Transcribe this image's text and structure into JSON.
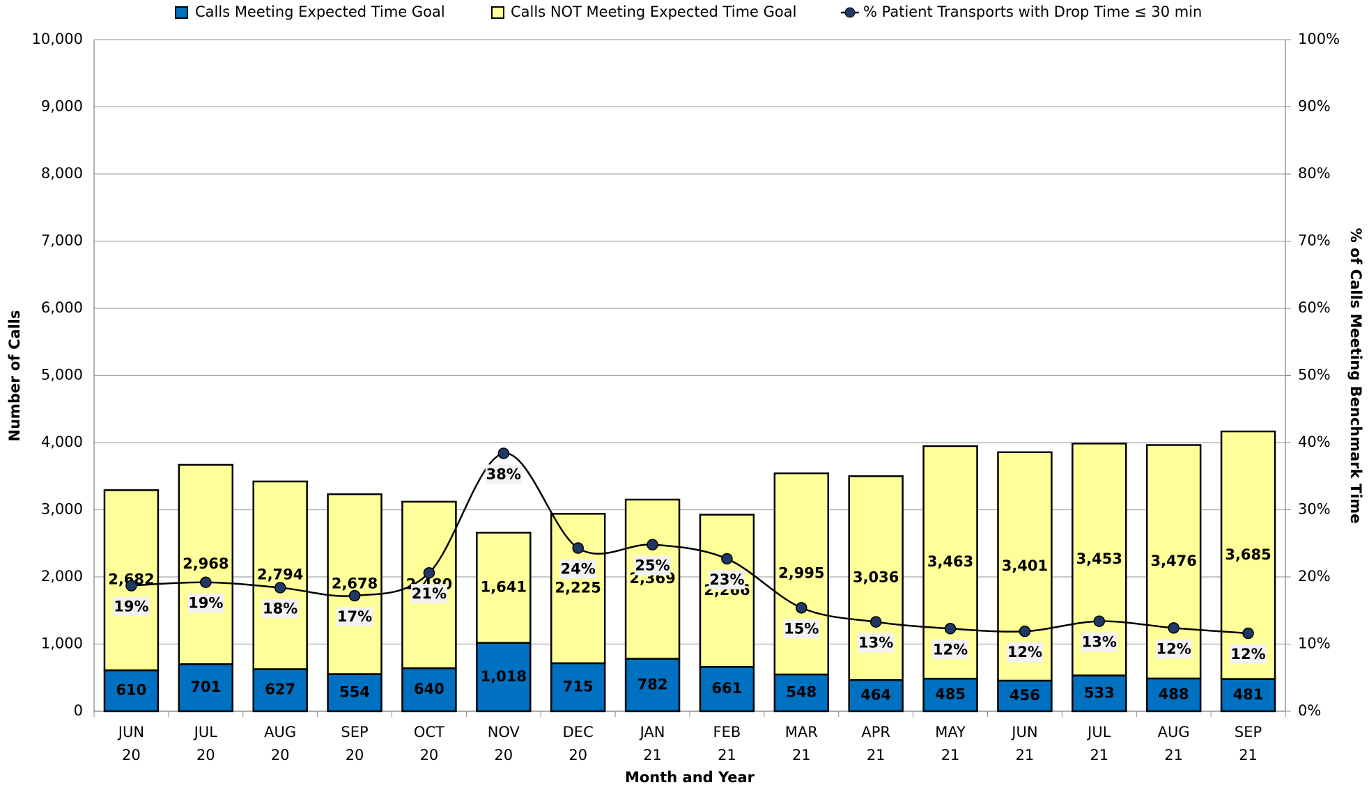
{
  "chart_data": {
    "type": "bar",
    "stacked": true,
    "x_label": "Month and Year",
    "y_label": "Number of Calls",
    "y2_label": "% of Calls Meeting Benchmark Time",
    "categories": [
      [
        "JUN",
        "20"
      ],
      [
        "JUL",
        "20"
      ],
      [
        "AUG",
        "20"
      ],
      [
        "SEP",
        "20"
      ],
      [
        "OCT",
        "20"
      ],
      [
        "NOV",
        "20"
      ],
      [
        "DEC",
        "20"
      ],
      [
        "JAN",
        "21"
      ],
      [
        "FEB",
        "21"
      ],
      [
        "MAR",
        "21"
      ],
      [
        "APR",
        "21"
      ],
      [
        "MAY",
        "21"
      ],
      [
        "JUN",
        "21"
      ],
      [
        "JUL",
        "21"
      ],
      [
        "AUG",
        "21"
      ],
      [
        "SEP",
        "21"
      ]
    ],
    "series": [
      {
        "name": "Calls Meeting Expected Time Goal",
        "type": "bar",
        "color": "#0070c0",
        "values": [
          610,
          701,
          627,
          554,
          640,
          1018,
          715,
          782,
          661,
          548,
          464,
          485,
          456,
          533,
          488,
          481
        ],
        "value_labels": [
          "610",
          "701",
          "627",
          "554",
          "640",
          "1,018",
          "715",
          "782",
          "661",
          "548",
          "464",
          "485",
          "456",
          "533",
          "488",
          "481"
        ]
      },
      {
        "name": "Calls NOT Meeting Expected Time Goal",
        "type": "bar",
        "color": "#ffff99",
        "values": [
          2682,
          2968,
          2794,
          2678,
          2480,
          1641,
          2225,
          2369,
          2266,
          2995,
          3036,
          3463,
          3401,
          3453,
          3476,
          3685
        ],
        "value_labels": [
          "2,682",
          "2,968",
          "2,794",
          "2,678",
          "2,480",
          "1,641",
          "2,225",
          "2,369",
          "2,266",
          "2,995",
          "3,036",
          "3,463",
          "3,401",
          "3,453",
          "3,476",
          "3,685"
        ]
      },
      {
        "name": "% Patient Transports with Drop Time ≤ 30 min",
        "type": "line",
        "axis": "y2",
        "color": "#000000",
        "marker_color": "#1f3864",
        "values": [
          18.7,
          19.2,
          18.4,
          17.2,
          20.6,
          38.4,
          24.3,
          24.8,
          22.7,
          15.4,
          13.3,
          12.3,
          11.9,
          13.4,
          12.4,
          11.6
        ],
        "value_labels": [
          "19%",
          "19%",
          "18%",
          "17%",
          "21%",
          "38%",
          "24%",
          "25%",
          "23%",
          "15%",
          "13%",
          "12%",
          "12%",
          "13%",
          "12%",
          "12%"
        ]
      }
    ],
    "ylim": [
      0,
      10000
    ],
    "yticks": [
      0,
      {
        "value": 1000,
        "label": "1,000"
      },
      {
        "value": 2000,
        "label": "2,000"
      },
      {
        "value": 3000,
        "label": "3,000"
      },
      {
        "value": 4000,
        "label": "4,000"
      },
      {
        "value": 5000,
        "label": "5,000"
      },
      {
        "value": 6000,
        "label": "6,000"
      },
      {
        "value": 7000,
        "label": "7,000"
      },
      {
        "value": 8000,
        "label": "8,000"
      },
      {
        "value": 9000,
        "label": "9,000"
      },
      {
        "value": 10000,
        "label": "10,000"
      }
    ],
    "y2lim": [
      0,
      100
    ],
    "y2ticks": [
      {
        "value": 0,
        "label": "0%"
      },
      {
        "value": 10,
        "label": "10%"
      },
      {
        "value": 20,
        "label": "20%"
      },
      {
        "value": 30,
        "label": "30%"
      },
      {
        "value": 40,
        "label": "40%"
      },
      {
        "value": 50,
        "label": "50%"
      },
      {
        "value": 60,
        "label": "60%"
      },
      {
        "value": 70,
        "label": "70%"
      },
      {
        "value": 80,
        "label": "80%"
      },
      {
        "value": 90,
        "label": "90%"
      },
      {
        "value": 100,
        "label": "100%"
      }
    ],
    "grid": true,
    "legend": "top"
  }
}
